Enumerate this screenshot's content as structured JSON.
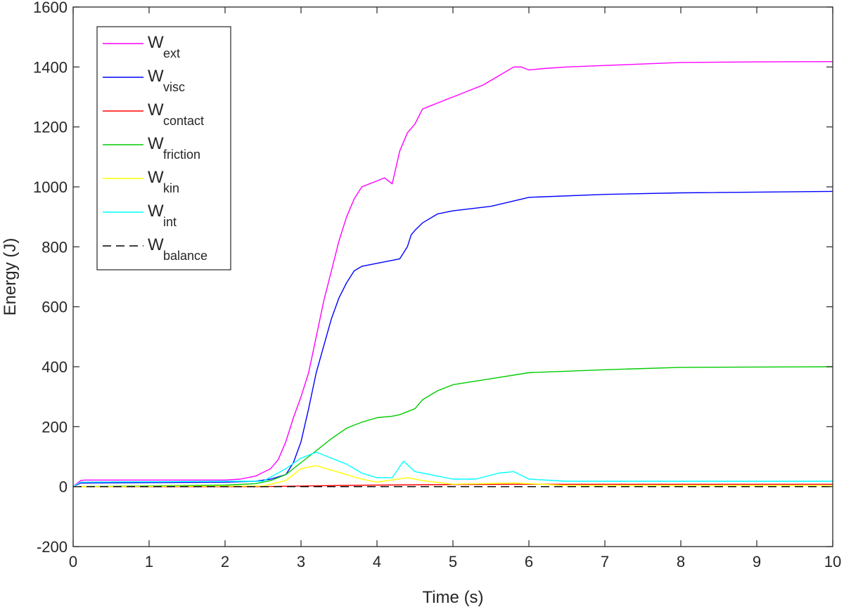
{
  "chart_data": {
    "type": "line",
    "title": "",
    "xlabel": "Time (s)",
    "ylabel": "Energy (J)",
    "xlim": [
      0,
      10
    ],
    "ylim": [
      -200,
      1600
    ],
    "xticks": [
      0,
      1,
      2,
      3,
      4,
      5,
      6,
      7,
      8,
      9,
      10
    ],
    "yticks": [
      -200,
      0,
      200,
      400,
      600,
      800,
      1000,
      1200,
      1400,
      1600
    ],
    "grid": false,
    "legend_position": "top-left",
    "series": [
      {
        "name": "W_ext",
        "label_main": "W",
        "label_sub": "ext",
        "color": "#ff00ff",
        "dash": false,
        "x": [
          0,
          0.1,
          0.15,
          2.0,
          2.2,
          2.4,
          2.6,
          2.7,
          2.8,
          2.9,
          3.0,
          3.1,
          3.2,
          3.3,
          3.4,
          3.5,
          3.6,
          3.7,
          3.8,
          3.9,
          4.0,
          4.1,
          4.2,
          4.3,
          4.4,
          4.5,
          4.6,
          4.7,
          4.8,
          5.0,
          5.2,
          5.4,
          5.6,
          5.8,
          5.9,
          6.0,
          6.2,
          6.5,
          7.0,
          7.5,
          8.0,
          9.0,
          10.0
        ],
        "y": [
          0,
          20,
          22,
          22,
          25,
          35,
          60,
          90,
          150,
          230,
          300,
          380,
          500,
          620,
          720,
          820,
          900,
          960,
          1000,
          1010,
          1020,
          1030,
          1010,
          1120,
          1180,
          1210,
          1260,
          1270,
          1280,
          1300,
          1320,
          1340,
          1370,
          1400,
          1400,
          1390,
          1395,
          1400,
          1405,
          1410,
          1415,
          1417,
          1418
        ]
      },
      {
        "name": "W_visc",
        "label_main": "W",
        "label_sub": "visc",
        "color": "#0000ff",
        "dash": false,
        "x": [
          0,
          0.1,
          2.0,
          2.4,
          2.6,
          2.8,
          2.9,
          3.0,
          3.1,
          3.2,
          3.3,
          3.4,
          3.5,
          3.6,
          3.7,
          3.8,
          4.0,
          4.3,
          4.4,
          4.45,
          4.5,
          4.6,
          4.8,
          5.0,
          5.5,
          6.0,
          7.0,
          8.0,
          10.0
        ],
        "y": [
          0,
          12,
          15,
          18,
          25,
          40,
          80,
          150,
          260,
          380,
          470,
          560,
          630,
          680,
          720,
          735,
          745,
          760,
          800,
          840,
          855,
          880,
          910,
          920,
          935,
          965,
          975,
          980,
          985
        ]
      },
      {
        "name": "W_contact",
        "label_main": "W",
        "label_sub": "contact",
        "color": "#ff0000",
        "dash": false,
        "x": [
          0,
          2.5,
          3.0,
          3.5,
          4.0,
          5.0,
          6.0,
          10.0
        ],
        "y": [
          0,
          0,
          2,
          4,
          5,
          7,
          8,
          8
        ]
      },
      {
        "name": "W_friction",
        "label_main": "W",
        "label_sub": "friction",
        "color": "#00cc00",
        "dash": false,
        "x": [
          0,
          2.0,
          2.4,
          2.6,
          2.8,
          3.0,
          3.2,
          3.4,
          3.6,
          3.8,
          4.0,
          4.2,
          4.3,
          4.5,
          4.6,
          4.8,
          5.0,
          5.5,
          6.0,
          7.0,
          8.0,
          10.0
        ],
        "y": [
          0,
          5,
          10,
          20,
          40,
          80,
          120,
          160,
          195,
          215,
          230,
          235,
          240,
          260,
          290,
          320,
          340,
          360,
          380,
          390,
          398,
          400
        ]
      },
      {
        "name": "W_kin",
        "label_main": "W",
        "label_sub": "kin",
        "color": "#ffff00",
        "dash": false,
        "x": [
          0,
          2.5,
          2.8,
          3.0,
          3.2,
          3.4,
          3.6,
          3.8,
          4.0,
          4.4,
          4.6,
          5.0,
          5.8,
          6.5,
          10.0
        ],
        "y": [
          0,
          2,
          20,
          60,
          70,
          55,
          40,
          25,
          15,
          30,
          20,
          8,
          12,
          4,
          3
        ]
      },
      {
        "name": "W_int",
        "label_main": "W",
        "label_sub": "int",
        "color": "#00ffff",
        "dash": false,
        "x": [
          0,
          0.1,
          2.0,
          2.5,
          2.8,
          3.0,
          3.2,
          3.4,
          3.6,
          3.8,
          4.0,
          4.2,
          4.35,
          4.5,
          4.7,
          5.0,
          5.3,
          5.6,
          5.8,
          6.0,
          6.5,
          8.0,
          10.0
        ],
        "y": [
          0,
          15,
          18,
          18,
          60,
          95,
          115,
          95,
          75,
          45,
          30,
          30,
          85,
          50,
          40,
          25,
          25,
          45,
          50,
          25,
          18,
          18,
          18
        ]
      },
      {
        "name": "W_balance",
        "label_main": "W",
        "label_sub": "balance",
        "color": "#000000",
        "dash": true,
        "x": [
          0,
          10.0
        ],
        "y": [
          0,
          0
        ]
      }
    ]
  }
}
